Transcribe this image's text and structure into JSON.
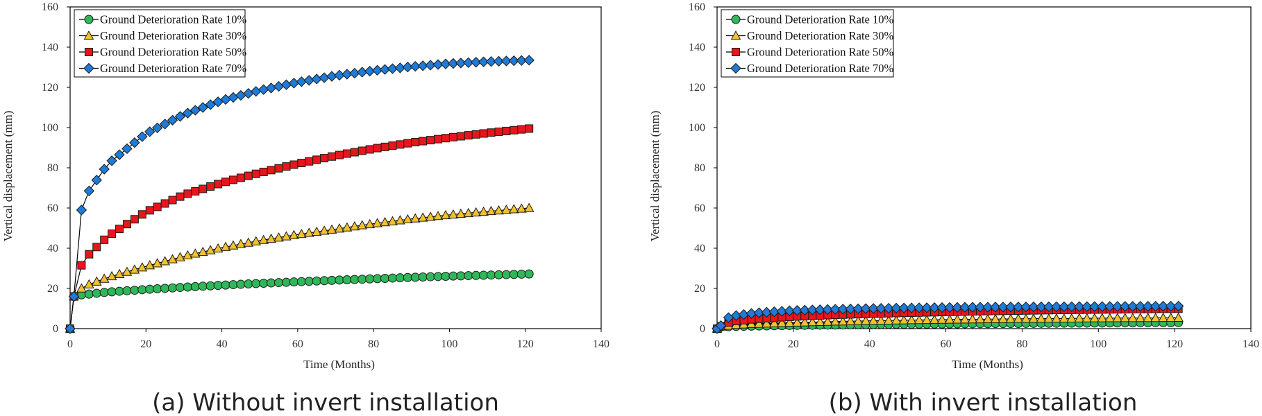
{
  "chart_data": [
    {
      "type": "line",
      "caption": "(a) Without invert installation",
      "xlabel": "Time (Months)",
      "ylabel": "Vertical displacement (mm)",
      "xlim": [
        0,
        140
      ],
      "ylim": [
        0,
        160
      ],
      "xticks": [
        0,
        20,
        40,
        60,
        80,
        100,
        120,
        140
      ],
      "yticks": [
        0,
        20,
        40,
        60,
        80,
        100,
        120,
        140,
        160
      ],
      "grid": false,
      "legend": "top-left",
      "series": [
        {
          "name": "Ground Deterioration Rate 10%",
          "marker": "circle",
          "color": "#2fb85a",
          "x": [
            0,
            1,
            3,
            5,
            10,
            20,
            30,
            40,
            50,
            60,
            70,
            80,
            90,
            100,
            110,
            121
          ],
          "y": [
            0,
            16,
            16.8,
            17.2,
            18.2,
            19.5,
            20.6,
            21.6,
            22.5,
            23.3,
            24.1,
            24.8,
            25.5,
            26.1,
            26.6,
            27.2
          ]
        },
        {
          "name": "Ground Deterioration Rate 30%",
          "marker": "triangle",
          "color": "#f2c12e",
          "x": [
            0,
            1,
            3,
            5,
            10,
            20,
            30,
            40,
            50,
            60,
            70,
            80,
            90,
            100,
            110,
            121
          ],
          "y": [
            0,
            16,
            20,
            22,
            25.5,
            31,
            36,
            40.3,
            43.8,
            46.8,
            49.5,
            52.2,
            54.6,
            56.6,
            58.3,
            60
          ]
        },
        {
          "name": "Ground Deterioration Rate 50%",
          "marker": "square",
          "color": "#e8151b",
          "x": [
            0,
            1,
            3,
            5,
            10,
            20,
            30,
            40,
            50,
            60,
            70,
            80,
            90,
            100,
            110,
            121
          ],
          "y": [
            0,
            16,
            31.5,
            37,
            46,
            58,
            66.5,
            72.5,
            77.5,
            82,
            86,
            89.5,
            92.5,
            95,
            97.3,
            99.5
          ]
        },
        {
          "name": "Ground Deterioration Rate 70%",
          "marker": "diamond",
          "color": "#1f7bd6",
          "x": [
            0,
            1,
            3,
            5,
            10,
            20,
            30,
            40,
            50,
            60,
            70,
            80,
            90,
            100,
            110,
            121
          ],
          "y": [
            0,
            16,
            59,
            68.5,
            82,
            97,
            106.5,
            113.5,
            118.5,
            122.5,
            125.8,
            128.3,
            130.3,
            131.8,
            132.8,
            133.5
          ]
        }
      ]
    },
    {
      "type": "line",
      "caption": "(b) With invert installation",
      "xlabel": "Time (Months)",
      "ylabel": "Vertical displacement (mm)",
      "xlim": [
        0,
        140
      ],
      "ylim": [
        0,
        160
      ],
      "xticks": [
        0,
        20,
        40,
        60,
        80,
        100,
        120,
        140
      ],
      "yticks": [
        0,
        20,
        40,
        60,
        80,
        100,
        120,
        140,
        160
      ],
      "grid": false,
      "legend": "top-left",
      "series": [
        {
          "name": "Ground Deterioration Rate 10%",
          "marker": "circle",
          "color": "#2fb85a",
          "x": [
            0,
            1,
            3,
            5,
            10,
            20,
            30,
            40,
            50,
            60,
            70,
            80,
            90,
            100,
            110,
            121
          ],
          "y": [
            0,
            0.8,
            1.0,
            1.1,
            1.3,
            1.6,
            1.8,
            2.0,
            2.2,
            2.3,
            2.5,
            2.6,
            2.7,
            2.8,
            2.9,
            3.0
          ]
        },
        {
          "name": "Ground Deterioration Rate 30%",
          "marker": "triangle",
          "color": "#f2c12e",
          "x": [
            0,
            1,
            3,
            5,
            10,
            20,
            30,
            40,
            50,
            60,
            70,
            80,
            90,
            100,
            110,
            121
          ],
          "y": [
            0,
            1.0,
            1.5,
            1.9,
            2.4,
            3.0,
            3.5,
            3.9,
            4.2,
            4.5,
            4.7,
            4.9,
            5.0,
            5.2,
            5.3,
            5.4
          ]
        },
        {
          "name": "Ground Deterioration Rate 50%",
          "marker": "square",
          "color": "#e8151b",
          "x": [
            0,
            1,
            3,
            5,
            10,
            20,
            30,
            40,
            50,
            60,
            70,
            80,
            90,
            100,
            110,
            121
          ],
          "y": [
            0,
            1.2,
            3.0,
            3.8,
            4.8,
            6.0,
            6.8,
            7.4,
            7.9,
            8.3,
            8.7,
            9.0,
            9.3,
            9.5,
            9.7,
            9.9
          ]
        },
        {
          "name": "Ground Deterioration Rate 70%",
          "marker": "diamond",
          "color": "#1f7bd6",
          "x": [
            0,
            1,
            3,
            5,
            10,
            20,
            30,
            40,
            50,
            60,
            70,
            80,
            90,
            100,
            110,
            121
          ],
          "y": [
            0,
            1.5,
            5.5,
            6.5,
            7.8,
            9.0,
            9.6,
            10.0,
            10.3,
            10.5,
            10.7,
            10.8,
            10.9,
            11.0,
            11.1,
            11.2
          ]
        }
      ]
    }
  ]
}
